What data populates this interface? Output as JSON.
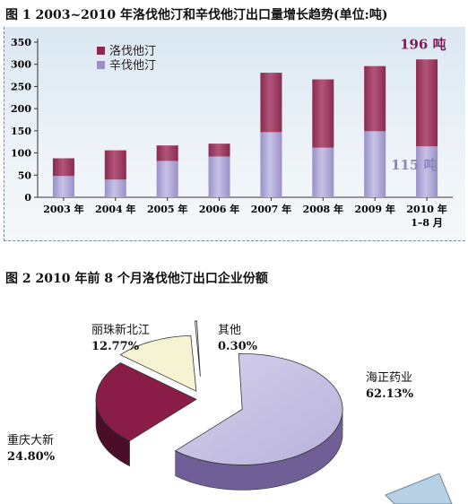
{
  "figure1": {
    "title": "图 1  2003~2010 年洛伐他汀和辛伐他汀出口量增长趋势(单位:吨)"
  },
  "figure2": {
    "title": "图 2   2010 年前 8 个月洛伐他汀出口企业份额"
  },
  "colors": {
    "lovastatin": "#8a2a4e",
    "simvastatin": "#9a90c8",
    "annotation_top": "#7a1f5c",
    "annotation_bottom": "#8a86b8",
    "pie_haizheng": "#b8b2da",
    "pie_chongqing": "#8a1c48",
    "pie_lizhu": "#f6f3d2",
    "pie_other": "#dde8ee"
  },
  "chart_data": [
    {
      "type": "bar",
      "stacked": true,
      "categories": [
        "2003 年",
        "2004 年",
        "2005 年",
        "2006 年",
        "2007 年",
        "2008 年",
        "2009 年",
        "2010 年\n1–8 月"
      ],
      "series": [
        {
          "name": "辛伐他汀",
          "values": [
            48,
            40,
            82,
            92,
            147,
            112,
            149,
            115
          ],
          "color_key": "simvastatin"
        },
        {
          "name": "洛伐他汀",
          "values": [
            40,
            66,
            35,
            29,
            134,
            154,
            147,
            196
          ],
          "color_key": "lovastatin"
        }
      ],
      "ylim": [
        0,
        350
      ],
      "yticks": [
        0,
        50,
        100,
        150,
        200,
        250,
        300,
        350
      ],
      "legend_position": "top-left",
      "grid": false,
      "annotations": [
        {
          "text": "196 吨",
          "category_index": 7,
          "series": "洛伐他汀",
          "color_key": "annotation_top"
        },
        {
          "text": "115 吨",
          "category_index": 7,
          "series": "辛伐他汀",
          "color_key": "annotation_bottom"
        }
      ]
    },
    {
      "type": "pie",
      "style": "3d-exploded",
      "slices": [
        {
          "name": "海正药业",
          "value": 62.13,
          "label": "62.13%",
          "color_key": "pie_haizheng"
        },
        {
          "name": "重庆大新",
          "value": 24.8,
          "label": "24.80%",
          "color_key": "pie_chongqing"
        },
        {
          "name": "丽珠新北江",
          "value": 12.77,
          "label": "12.77%",
          "color_key": "pie_lizhu"
        },
        {
          "name": "其他",
          "value": 0.3,
          "label": "0.30%",
          "color_key": "pie_other"
        }
      ]
    }
  ]
}
